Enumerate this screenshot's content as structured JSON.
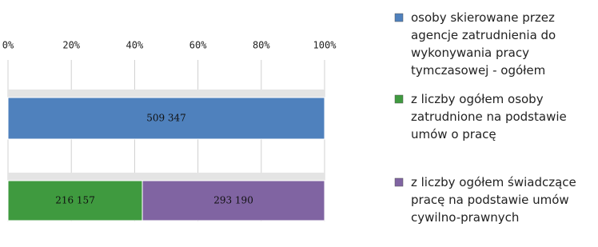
{
  "chart_data": {
    "type": "bar",
    "orientation": "horizontal",
    "stacked": "percent",
    "categories": [
      null,
      null
    ],
    "series": [
      {
        "name": "osoby skierowane przez agencje zatrudnienia do wykonywania pracy tymczasowej - ogółem",
        "color": "#4f81bd",
        "values": [
          509347,
          null
        ],
        "value_labels": [
          "509 347",
          null
        ]
      },
      {
        "name": "z liczby ogółem osoby zatrudnione na podstawie umów o pracę",
        "color": "#3f9a3f",
        "values": [
          null,
          216157
        ],
        "value_labels": [
          null,
          "216 157"
        ]
      },
      {
        "name": "z liczby ogółem świadczące pracę na podstawie umów cywilno-prawnych",
        "color": "#8064a2",
        "values": [
          null,
          293190
        ],
        "value_labels": [
          null,
          "293 190"
        ]
      }
    ],
    "xlim": [
      0,
      100
    ],
    "xticks": [
      {
        "value": 0,
        "label": "0%"
      },
      {
        "value": 20,
        "label": "20%"
      },
      {
        "value": 40,
        "label": "40%"
      },
      {
        "value": 60,
        "label": "60%"
      },
      {
        "value": 80,
        "label": "80%"
      },
      {
        "value": 100,
        "label": "100%"
      }
    ],
    "grid": true,
    "legend": "right"
  }
}
